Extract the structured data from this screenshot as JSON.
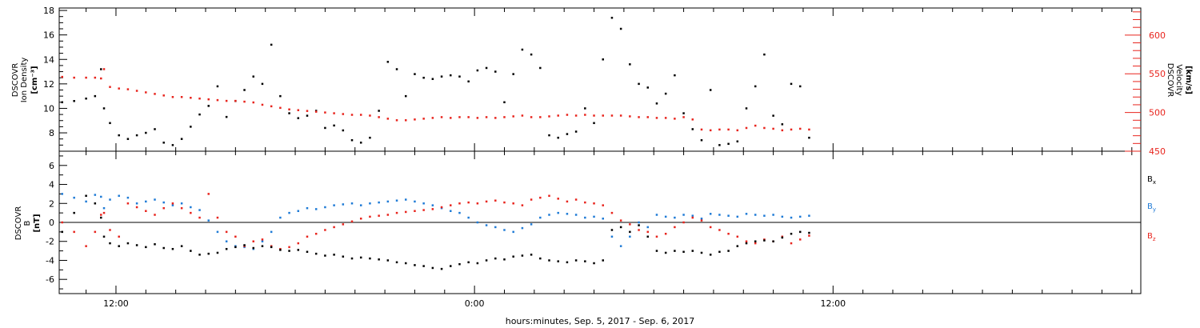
{
  "x_axis": {
    "label": "hours:minutes, Sep.  5, 2017 - Sep.  6, 2017",
    "ticks": [
      {
        "hours": 12,
        "label": "12:00"
      },
      {
        "hours": 24,
        "label": "0:00"
      },
      {
        "hours": 36,
        "label": "12:00"
      }
    ]
  },
  "colors": {
    "black": "#000000",
    "red": "#e8251e",
    "blue": "#1f7bd6"
  },
  "chart_data": [
    {
      "type": "scatter",
      "title": "",
      "xlabel": "hours:minutes, Sep.  5, 2017 - Sep.  6, 2017",
      "x_unit": "hours since Sep. 5 00:00",
      "xlim": [
        10.1,
        46.3
      ],
      "left_axis": {
        "label_lines": [
          "DSCOVR",
          "Ion  Density",
          "[cm⁻³]"
        ],
        "ticks": [
          8,
          10,
          12,
          14,
          16,
          18
        ],
        "ylim": [
          6.5,
          18.2
        ]
      },
      "right_axis": {
        "label_lines": [
          "DSCOVR",
          "Velocity",
          "[km/s]"
        ],
        "ticks": [
          450,
          500,
          550,
          600
        ],
        "ylim": [
          450,
          635
        ]
      },
      "series": [
        {
          "color": "#000000",
          "axis": "left",
          "x": [
            10.2,
            10.6,
            11.0,
            11.3,
            11.5,
            11.6,
            11.8,
            12.1,
            12.4,
            12.7,
            13.0,
            13.3,
            13.6,
            13.9,
            14.2,
            14.5,
            14.8,
            15.1,
            15.4,
            15.7,
            16.0,
            16.3,
            16.6,
            16.9,
            17.2,
            17.5,
            17.8,
            18.1,
            18.4,
            18.7,
            19.0,
            19.3,
            19.6,
            19.9,
            20.2,
            20.5,
            20.8,
            21.1,
            21.4,
            21.7,
            22.0,
            22.3,
            22.6,
            22.9,
            23.2,
            23.5,
            23.8,
            24.1,
            24.4,
            24.7,
            25.0,
            25.3,
            25.6,
            25.9,
            26.2,
            26.5,
            26.8,
            27.1,
            27.4,
            27.7,
            28.0,
            28.3,
            28.6,
            28.9,
            29.2,
            29.5,
            29.8,
            30.1,
            30.4,
            30.7,
            31.0,
            31.3,
            31.6,
            31.9,
            32.2,
            32.5,
            32.8,
            33.1,
            33.4,
            33.7,
            34.0,
            34.3,
            34.6,
            34.9,
            35.2
          ],
          "values": [
            10.5,
            10.6,
            10.8,
            11.0,
            13.2,
            10.0,
            8.8,
            7.8,
            7.5,
            7.8,
            8.0,
            8.3,
            7.2,
            7.0,
            7.5,
            8.5,
            9.5,
            10.2,
            11.8,
            9.3,
            10.6,
            11.5,
            12.6,
            12.0,
            15.2,
            11.0,
            9.6,
            9.2,
            9.4,
            9.8,
            8.4,
            8.6,
            8.2,
            7.4,
            7.2,
            7.6,
            9.8,
            13.8,
            13.2,
            11.0,
            12.8,
            12.5,
            12.4,
            12.6,
            12.7,
            12.6,
            12.2,
            13.1,
            13.3,
            13.0,
            10.5,
            12.8,
            14.8,
            14.4,
            13.3,
            7.8,
            7.6,
            7.9,
            8.1,
            10.0,
            8.8,
            14.0,
            17.4,
            16.5,
            13.6,
            12.0,
            11.7,
            10.4,
            11.2,
            12.7,
            9.6,
            8.3,
            7.4,
            11.5,
            7.0,
            7.1,
            7.3,
            10.0,
            11.8,
            14.4,
            9.4,
            8.7,
            12.0,
            11.8,
            7.6
          ]
        },
        {
          "color": "#e8251e",
          "axis": "right",
          "x": [
            10.2,
            10.6,
            11.0,
            11.3,
            11.5,
            11.6,
            11.8,
            12.1,
            12.4,
            12.7,
            13.0,
            13.3,
            13.6,
            13.9,
            14.2,
            14.5,
            14.8,
            15.1,
            15.4,
            15.7,
            16.0,
            16.3,
            16.6,
            16.9,
            17.2,
            17.5,
            17.8,
            18.1,
            18.4,
            18.7,
            19.0,
            19.3,
            19.6,
            19.9,
            20.2,
            20.5,
            20.8,
            21.1,
            21.4,
            21.7,
            22.0,
            22.3,
            22.6,
            22.9,
            23.2,
            23.5,
            23.8,
            24.1,
            24.4,
            24.7,
            25.0,
            25.3,
            25.6,
            25.9,
            26.2,
            26.5,
            26.8,
            27.1,
            27.4,
            27.7,
            28.0,
            28.3,
            28.6,
            28.9,
            29.2,
            29.5,
            29.8,
            30.1,
            30.4,
            30.7,
            31.0,
            31.3,
            31.6,
            31.9,
            32.2,
            32.5,
            32.8,
            33.1,
            33.4,
            33.7,
            34.0,
            34.3,
            34.6,
            34.9,
            35.2
          ],
          "values": [
            546,
            545,
            545,
            545,
            544,
            556,
            533,
            531,
            530,
            528,
            526,
            524,
            522,
            520,
            520,
            519,
            518,
            517,
            516,
            515,
            515,
            514,
            513,
            510,
            508,
            506,
            504,
            503,
            502,
            501,
            500,
            499,
            498,
            497,
            497,
            496,
            494,
            492,
            490,
            490,
            491,
            492,
            493,
            494,
            493,
            494,
            494,
            493,
            494,
            493,
            494,
            495,
            496,
            494,
            494,
            495,
            496,
            497,
            496,
            497,
            496,
            496,
            496,
            496,
            495,
            494,
            494,
            493,
            493,
            492,
            494,
            491,
            478,
            477,
            478,
            478,
            477,
            480,
            483,
            480,
            479,
            477,
            478,
            479,
            478
          ]
        }
      ]
    },
    {
      "type": "scatter",
      "title": "",
      "xlim": [
        10.1,
        46.3
      ],
      "ylim": [
        -7.5,
        7.5
      ],
      "left_axis": {
        "label_lines": [
          "DSCOVR",
          "B",
          "[nT]"
        ],
        "ticks": [
          -6,
          -4,
          -2,
          0,
          2,
          4,
          6
        ]
      },
      "zero_line": true,
      "series": [
        {
          "name": "Bx",
          "color": "#000000",
          "x": [
            10.2,
            10.6,
            11.0,
            11.3,
            11.5,
            11.6,
            11.8,
            12.1,
            12.4,
            12.7,
            13.0,
            13.3,
            13.6,
            13.9,
            14.2,
            14.5,
            14.8,
            15.1,
            15.4,
            15.7,
            16.0,
            16.3,
            16.6,
            16.9,
            17.2,
            17.5,
            17.8,
            18.1,
            18.4,
            18.7,
            19.0,
            19.3,
            19.6,
            19.9,
            20.2,
            20.5,
            20.8,
            21.1,
            21.4,
            21.7,
            22.0,
            22.3,
            22.6,
            22.9,
            23.2,
            23.5,
            23.8,
            24.1,
            24.4,
            24.7,
            25.0,
            25.3,
            25.6,
            25.9,
            26.2,
            26.5,
            26.8,
            27.1,
            27.4,
            27.7,
            28.0,
            28.3,
            28.6,
            28.9,
            29.2,
            29.5,
            29.8,
            30.1,
            30.4,
            30.7,
            31.0,
            31.3,
            31.6,
            31.9,
            32.2,
            32.5,
            32.8,
            33.1,
            33.4,
            33.7,
            34.0,
            34.3,
            34.6,
            34.9,
            35.2
          ],
          "values": [
            -1.0,
            1.0,
            2.8,
            2.0,
            0.5,
            -1.5,
            -2.2,
            -2.5,
            -2.2,
            -2.4,
            -2.6,
            -2.3,
            -2.7,
            -2.8,
            -2.5,
            -3.0,
            -3.4,
            -3.3,
            -3.2,
            -2.8,
            -2.6,
            -2.4,
            -2.7,
            -2.5,
            -2.6,
            -2.9,
            -3.0,
            -2.9,
            -3.1,
            -3.3,
            -3.5,
            -3.4,
            -3.6,
            -3.8,
            -3.7,
            -3.8,
            -3.9,
            -4.0,
            -4.2,
            -4.3,
            -4.5,
            -4.6,
            -4.8,
            -4.9,
            -4.6,
            -4.4,
            -4.2,
            -4.3,
            -4.0,
            -3.8,
            -3.9,
            -3.6,
            -3.5,
            -3.4,
            -3.8,
            -4.0,
            -4.1,
            -4.2,
            -4.0,
            -4.1,
            -4.3,
            -4.0,
            -0.8,
            -0.5,
            -1.0,
            -0.3,
            -1.5,
            -3.0,
            -3.2,
            -3.0,
            -3.1,
            -3.0,
            -3.2,
            -3.4,
            -3.1,
            -3.0,
            -2.5,
            -2.2,
            -2.0,
            -1.9,
            -2.0,
            -1.6,
            -1.2,
            -1.0,
            -1.1
          ]
        },
        {
          "name": "By",
          "color": "#1f7bd6",
          "x": [
            10.2,
            10.6,
            11.0,
            11.3,
            11.5,
            11.6,
            11.8,
            12.1,
            12.4,
            12.7,
            13.0,
            13.3,
            13.6,
            13.9,
            14.2,
            14.5,
            14.8,
            15.1,
            15.4,
            15.7,
            16.0,
            16.3,
            16.6,
            16.9,
            17.2,
            17.5,
            17.8,
            18.1,
            18.4,
            18.7,
            19.0,
            19.3,
            19.6,
            19.9,
            20.2,
            20.5,
            20.8,
            21.1,
            21.4,
            21.7,
            22.0,
            22.3,
            22.6,
            22.9,
            23.2,
            23.5,
            23.8,
            24.1,
            24.4,
            24.7,
            25.0,
            25.3,
            25.6,
            25.9,
            26.2,
            26.5,
            26.8,
            27.1,
            27.4,
            27.7,
            28.0,
            28.3,
            28.6,
            28.9,
            29.2,
            29.5,
            29.8,
            30.1,
            30.4,
            30.7,
            31.0,
            31.3,
            31.6,
            31.9,
            32.2,
            32.5,
            32.8,
            33.1,
            33.4,
            33.7,
            34.0,
            34.3,
            34.6,
            34.9,
            35.2
          ],
          "values": [
            3.0,
            2.6,
            2.2,
            2.9,
            2.7,
            1.5,
            2.4,
            2.8,
            2.6,
            2.0,
            2.2,
            2.4,
            2.1,
            1.8,
            2.0,
            1.6,
            1.3,
            0.2,
            -1.0,
            -2.0,
            -2.5,
            -2.6,
            -2.8,
            -2.0,
            -1.0,
            0.5,
            1.0,
            1.2,
            1.5,
            1.4,
            1.6,
            1.8,
            1.9,
            2.0,
            1.8,
            2.0,
            2.1,
            2.2,
            2.3,
            2.4,
            2.2,
            2.0,
            1.8,
            1.5,
            1.2,
            1.0,
            0.5,
            0.0,
            -0.3,
            -0.5,
            -0.8,
            -1.0,
            -0.6,
            -0.2,
            0.5,
            0.8,
            1.0,
            0.9,
            0.8,
            0.5,
            0.6,
            0.4,
            -1.5,
            -2.5,
            -1.5,
            0.0,
            -0.5,
            0.8,
            0.6,
            0.5,
            0.8,
            0.7,
            0.4,
            0.9,
            0.8,
            0.7,
            0.6,
            0.9,
            0.8,
            0.7,
            0.8,
            0.6,
            0.5,
            0.6,
            0.7
          ]
        },
        {
          "name": "Bz",
          "color": "#e8251e",
          "x": [
            10.2,
            10.6,
            11.0,
            11.3,
            11.5,
            11.6,
            11.8,
            12.1,
            12.4,
            12.7,
            13.0,
            13.3,
            13.6,
            13.9,
            14.2,
            14.5,
            14.8,
            15.1,
            15.4,
            15.7,
            16.0,
            16.3,
            16.6,
            16.9,
            17.2,
            17.5,
            17.8,
            18.1,
            18.4,
            18.7,
            19.0,
            19.3,
            19.6,
            19.9,
            20.2,
            20.5,
            20.8,
            21.1,
            21.4,
            21.7,
            22.0,
            22.3,
            22.6,
            22.9,
            23.2,
            23.5,
            23.8,
            24.1,
            24.4,
            24.7,
            25.0,
            25.3,
            25.6,
            25.9,
            26.2,
            26.5,
            26.8,
            27.1,
            27.4,
            27.7,
            28.0,
            28.3,
            28.6,
            28.9,
            29.2,
            29.5,
            29.8,
            30.1,
            30.4,
            30.7,
            31.0,
            31.3,
            31.6,
            31.9,
            32.2,
            32.5,
            32.8,
            33.1,
            33.4,
            33.7,
            34.0,
            34.3,
            34.6,
            34.9,
            35.2
          ],
          "values": [
            0.0,
            -1.0,
            -2.5,
            -1.0,
            0.8,
            1.0,
            -0.8,
            -1.5,
            2.0,
            1.6,
            1.2,
            0.8,
            1.5,
            2.0,
            1.5,
            1.0,
            0.5,
            3.0,
            0.5,
            -1.0,
            -1.5,
            -2.5,
            -2.0,
            -1.8,
            -2.5,
            -2.8,
            -2.6,
            -2.2,
            -1.5,
            -1.2,
            -0.8,
            -0.5,
            -0.2,
            0.1,
            0.4,
            0.6,
            0.7,
            0.8,
            1.0,
            1.1,
            1.2,
            1.3,
            1.4,
            1.6,
            1.8,
            2.0,
            2.1,
            2.0,
            2.2,
            2.3,
            2.1,
            2.0,
            1.8,
            2.4,
            2.6,
            2.8,
            2.5,
            2.2,
            2.4,
            2.1,
            2.0,
            1.8,
            1.0,
            0.2,
            -0.2,
            -0.8,
            -1.0,
            -1.5,
            -1.2,
            -0.5,
            0.0,
            0.5,
            0.2,
            -0.5,
            -0.8,
            -1.2,
            -1.5,
            -2.0,
            -2.2,
            -1.8,
            -2.0,
            -1.5,
            -2.2,
            -1.8,
            -1.4
          ]
        }
      ],
      "legend": [
        {
          "label": "B",
          "subscript": "x",
          "color": "#000000"
        },
        {
          "label": "B",
          "subscript": "y",
          "color": "#1f7bd6"
        },
        {
          "label": "B",
          "subscript": "z",
          "color": "#e8251e"
        }
      ]
    }
  ]
}
